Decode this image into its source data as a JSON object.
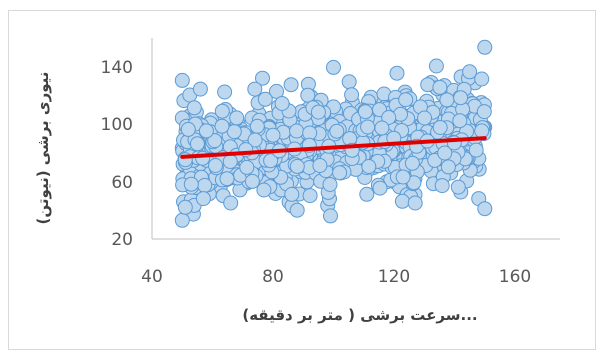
{
  "chart_data": {
    "type": "scatter",
    "title": "",
    "xlabel": "...سرعت برشی ( متر بر دقیقه)",
    "ylabel": "نیوری برشی (نیوتن)",
    "xlim": [
      40,
      160
    ],
    "ylim": [
      20,
      150
    ],
    "x_ticks": [
      "40",
      "80",
      "120",
      "160"
    ],
    "y_ticks": [
      "20",
      "60",
      "100",
      "140"
    ],
    "grid": false,
    "legend": "none",
    "marker_fill": "#bdd7ee",
    "marker_stroke": "#5b9bd5",
    "trendline": {
      "color": "#e00000",
      "x": [
        50,
        150
      ],
      "y": [
        77,
        90
      ]
    },
    "sample_points": [
      [
        50,
        130
      ],
      [
        50,
        33
      ],
      [
        51,
        42
      ],
      [
        51,
        75
      ],
      [
        52,
        96
      ],
      [
        53,
        58
      ],
      [
        54,
        111
      ],
      [
        55,
        86
      ],
      [
        56,
        124
      ],
      [
        57,
        48
      ],
      [
        58,
        95
      ],
      [
        61,
        71
      ],
      [
        64,
        122
      ],
      [
        66,
        45
      ],
      [
        68,
        104
      ],
      [
        71,
        82
      ],
      [
        74,
        124
      ],
      [
        77,
        54
      ],
      [
        80,
        92
      ],
      [
        83,
        114
      ],
      [
        86,
        127
      ],
      [
        88,
        40
      ],
      [
        92,
        85
      ],
      [
        95,
        108
      ],
      [
        99,
        36
      ],
      [
        100,
        139
      ],
      [
        102,
        66
      ],
      [
        106,
        120
      ],
      [
        111,
        51
      ],
      [
        116,
        97
      ],
      [
        121,
        135
      ],
      [
        123,
        63
      ],
      [
        127,
        45
      ],
      [
        131,
        88
      ],
      [
        134,
        140
      ],
      [
        138,
        70
      ],
      [
        142,
        118
      ],
      [
        145,
        136
      ],
      [
        148,
        48
      ],
      [
        149,
        131
      ],
      [
        150,
        153
      ],
      [
        150,
        41
      ],
      [
        149,
        95
      ]
    ],
    "cloud_x_range": [
      50,
      150
    ],
    "cloud_y_mean": 85,
    "cloud_y_spread": 26
  }
}
